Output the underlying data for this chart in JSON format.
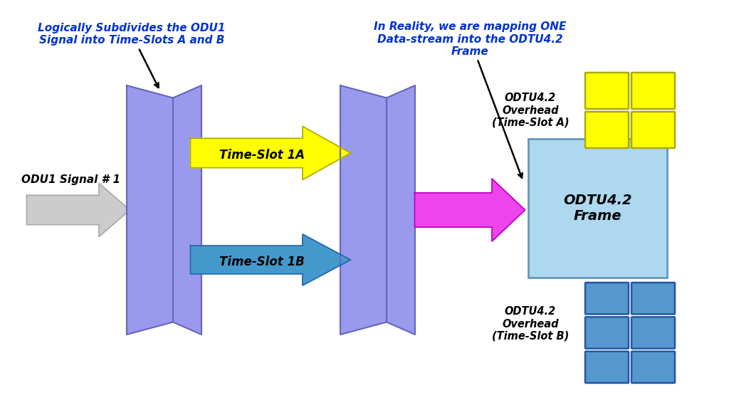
{
  "bg_color": "#ffffff",
  "purple_color": "#9999ee",
  "purple_dark": "#7777cc",
  "purple_edge": "#6666bb",
  "yellow_color": "#ffff00",
  "yellow_dark": "#aaaa00",
  "blue_arrow_color": "#4499cc",
  "blue_arrow_dark": "#2266aa",
  "magenta_color": "#ee44ee",
  "magenta_dark": "#bb00bb",
  "gray_fill": "#cccccc",
  "gray_dark": "#999999",
  "gray_edge": "#aaaaaa",
  "light_blue_box": "#add8f0",
  "light_blue_edge": "#6699bb",
  "yellow_grid_color": "#ffff00",
  "yellow_grid_edge": "#aaaa00",
  "blue_grid_color": "#5599cc",
  "blue_grid_edge": "#2255aa",
  "annotation_color": "#0033cc",
  "text_black": "#000000",
  "label1": "ODU1 Signal # 1",
  "label2": "Time-Slot 1A",
  "label3": "Time-Slot 1B",
  "label4": "ODTU4.2\nFrame",
  "label5": "ODTU4.2\nOverhead\n(Time-Slot A)",
  "label6": "ODTU4.2\nOverhead\n(Time-Slot B)",
  "annot1": "Logically Subdivides the ODU1\nSignal into Time-Slots A and B",
  "annot2": "In Reality, we are mapping ONE\nData-stream into the ODTU4.2\nFrame"
}
